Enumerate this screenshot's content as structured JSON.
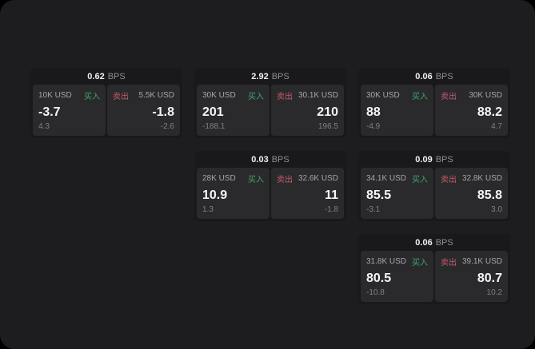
{
  "page": {
    "background": "#000000",
    "panel_background": "#1d1d1f"
  },
  "colors": {
    "buy_green": "#3fa468",
    "sell_red": "#c75a68",
    "card_background": "#19191b",
    "tile_background": "#2a2a2d"
  },
  "labels": {
    "buy": "买入",
    "sell": "卖出",
    "unit": "BPS"
  },
  "cards": [
    {
      "bps": "0.62",
      "buy": {
        "amount": "10K USD",
        "value": "-3.7",
        "change": "4.3"
      },
      "sell": {
        "amount": "5.5K USD",
        "value": "-1.8",
        "change": "-2.6"
      }
    },
    {
      "bps": "2.92",
      "buy": {
        "amount": "30K USD",
        "value": "201",
        "change": "-188.1"
      },
      "sell": {
        "amount": "30.1K USD",
        "value": "210",
        "change": "196.5"
      }
    },
    {
      "bps": "0.06",
      "buy": {
        "amount": "30K USD",
        "value": "88",
        "change": "-4.9"
      },
      "sell": {
        "amount": "30K USD",
        "value": "88.2",
        "change": "4.7"
      }
    },
    {
      "bps": "0.03",
      "buy": {
        "amount": "28K USD",
        "value": "10.9",
        "change": "1.3"
      },
      "sell": {
        "amount": "32.6K USD",
        "value": "11",
        "change": "-1.8"
      }
    },
    {
      "bps": "0.09",
      "buy": {
        "amount": "34.1K USD",
        "value": "85.5",
        "change": "-3.1"
      },
      "sell": {
        "amount": "32.8K USD",
        "value": "85.8",
        "change": "3.0"
      }
    },
    {
      "bps": "0.06",
      "buy": {
        "amount": "31.8K USD",
        "value": "80.5",
        "change": "-10.8"
      },
      "sell": {
        "amount": "39.1K USD",
        "value": "80.7",
        "change": "10.2"
      }
    }
  ]
}
